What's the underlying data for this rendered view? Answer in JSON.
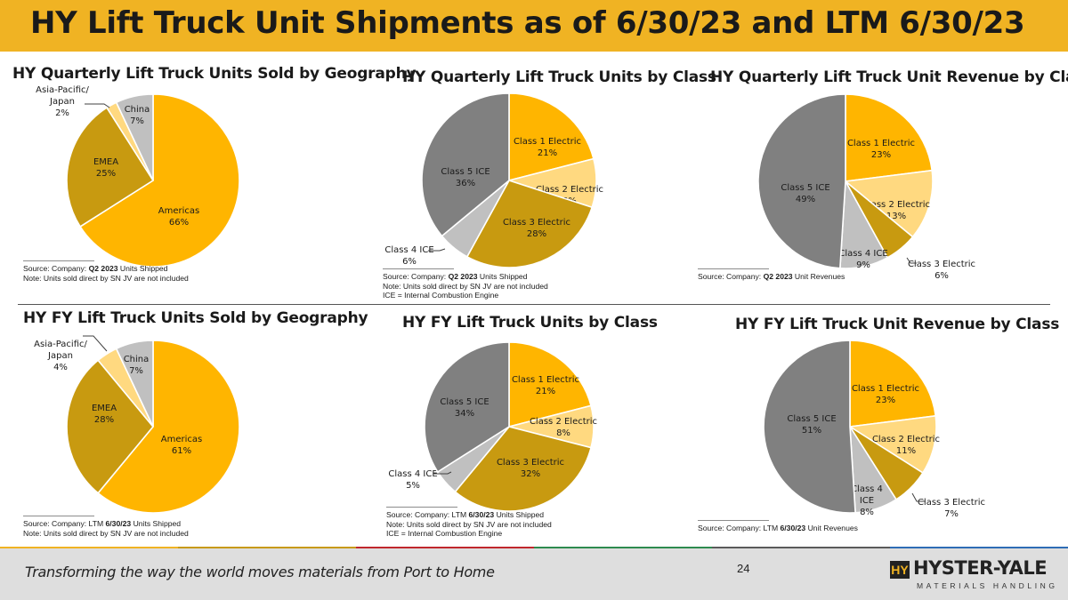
{
  "page": {
    "title": "HY Lift Truck Unit Shipments as of 6/30/23 and LTM 6/30/23",
    "tagline": "Transforming the way the world moves materials from Port to Home",
    "page_number": "24",
    "logo_mark": "HY",
    "logo_name": "HYSTER-YALE",
    "logo_sub": "MATERIALS HANDLING"
  },
  "colors": {
    "gold": "#ffb500",
    "dark_gold": "#c89a10",
    "light_gold": "#ffd980",
    "gray": "#808080",
    "light_gray": "#c0c0c0",
    "header_bar": "#f0b323"
  },
  "panels": [
    {
      "title": "HY Quarterly Lift Truck Units Sold by Geography",
      "note_lines": [
        {
          "pre": "Source: Company: ",
          "bold": "Q2 2023",
          "post": " Units Shipped"
        },
        {
          "pre": "Note:  Units sold direct by SN JV are not included",
          "bold": "",
          "post": ""
        }
      ]
    },
    {
      "title": "HY Quarterly Lift Truck Units by Class",
      "note_lines": [
        {
          "pre": "Source: Company: ",
          "bold": "Q2 2023",
          "post": " Units Shipped"
        },
        {
          "pre": "Note:  Units sold direct by SN JV are not included",
          "bold": "",
          "post": ""
        },
        {
          "pre": "ICE = Internal Combustion Engine",
          "bold": "",
          "post": ""
        }
      ]
    },
    {
      "title": "HY Quarterly Lift Truck Unit Revenue by Class",
      "note_lines": [
        {
          "pre": "Source: Company: ",
          "bold": "Q2 2023",
          "post": " Unit Revenues"
        }
      ]
    },
    {
      "title": "HY FY Lift Truck Units Sold by Geography",
      "note_lines": [
        {
          "pre": "Source: Company: LTM ",
          "bold": "6/30/23",
          "post": " Units Shipped"
        },
        {
          "pre": "Note:  Units sold direct by SN JV are not included",
          "bold": "",
          "post": ""
        }
      ]
    },
    {
      "title": "HY FY Lift Truck Units by Class",
      "note_lines": [
        {
          "pre": "Source: Company: LTM ",
          "bold": "6/30/23",
          "post": " Units Shipped"
        },
        {
          "pre": "Note:  Units sold direct by SN JV are not included",
          "bold": "",
          "post": ""
        },
        {
          "pre": "ICE = Internal Combustion Engine",
          "bold": "",
          "post": ""
        }
      ]
    },
    {
      "title": "HY FY Lift Truck Unit Revenue by Class",
      "note_lines": [
        {
          "pre": "Source: Company: LTM ",
          "bold": "6/30/23",
          "post": " Unit Revenues"
        }
      ]
    }
  ],
  "chart_data": [
    {
      "type": "pie",
      "title": "HY Quarterly Lift Truck Units Sold by Geography",
      "slices": [
        {
          "label": [
            "Americas"
          ],
          "value": 66,
          "display": "66%",
          "color": "#ffb500"
        },
        {
          "label": [
            "EMEA"
          ],
          "value": 25,
          "display": "25%",
          "color": "#c89a10"
        },
        {
          "label": [
            "Asia-Pacific/",
            "Japan"
          ],
          "value": 2,
          "display": "2%",
          "color": "#ffd980",
          "outside": true
        },
        {
          "label": [
            "China"
          ],
          "value": 7,
          "display": "7%",
          "color": "#c0c0c0"
        }
      ]
    },
    {
      "type": "pie",
      "title": "HY Quarterly Lift Truck Units by Class",
      "slices": [
        {
          "label": [
            "Class 1 Electric"
          ],
          "value": 21,
          "display": "21%",
          "color": "#ffb500"
        },
        {
          "label": [
            "Class 2 Electric"
          ],
          "value": 9,
          "display": "9%",
          "color": "#ffd980"
        },
        {
          "label": [
            "Class 3 Electric"
          ],
          "value": 28,
          "display": "28%",
          "color": "#c89a10"
        },
        {
          "label": [
            "Class 4 ICE"
          ],
          "value": 6,
          "display": "6%",
          "color": "#c0c0c0",
          "outside": true
        },
        {
          "label": [
            "Class 5 ICE"
          ],
          "value": 36,
          "display": "36%",
          "color": "#808080"
        }
      ]
    },
    {
      "type": "pie",
      "title": "HY Quarterly Lift Truck Unit Revenue by Class",
      "slices": [
        {
          "label": [
            "Class 1 Electric"
          ],
          "value": 23,
          "display": "23%",
          "color": "#ffb500"
        },
        {
          "label": [
            "Class 2 Electric"
          ],
          "value": 13,
          "display": "13%",
          "color": "#ffd980"
        },
        {
          "label": [
            "Class 3 Electric"
          ],
          "value": 6,
          "display": "6%",
          "color": "#c89a10",
          "outside": true
        },
        {
          "label": [
            "Class 4 ICE"
          ],
          "value": 9,
          "display": "9%",
          "color": "#c0c0c0"
        },
        {
          "label": [
            "Class 5 ICE"
          ],
          "value": 49,
          "display": "49%",
          "color": "#808080"
        }
      ]
    },
    {
      "type": "pie",
      "title": "HY FY Lift Truck Units Sold by Geography",
      "slices": [
        {
          "label": [
            "Americas"
          ],
          "value": 61,
          "display": "61%",
          "color": "#ffb500"
        },
        {
          "label": [
            "EMEA"
          ],
          "value": 28,
          "display": "28%",
          "color": "#c89a10"
        },
        {
          "label": [
            "Asia-Pacific/",
            "Japan"
          ],
          "value": 4,
          "display": "4%",
          "color": "#ffd980",
          "outside": true
        },
        {
          "label": [
            "China"
          ],
          "value": 7,
          "display": "7%",
          "color": "#c0c0c0"
        }
      ]
    },
    {
      "type": "pie",
      "title": "HY FY Lift Truck Units by Class",
      "slices": [
        {
          "label": [
            "Class 1 Electric"
          ],
          "value": 21,
          "display": "21%",
          "color": "#ffb500"
        },
        {
          "label": [
            "Class 2 Electric"
          ],
          "value": 8,
          "display": "8%",
          "color": "#ffd980"
        },
        {
          "label": [
            "Class 3 Electric"
          ],
          "value": 32,
          "display": "32%",
          "color": "#c89a10"
        },
        {
          "label": [
            "Class 4 ICE"
          ],
          "value": 5,
          "display": "5%",
          "color": "#c0c0c0",
          "outside": true
        },
        {
          "label": [
            "Class 5 ICE"
          ],
          "value": 34,
          "display": "34%",
          "color": "#808080"
        }
      ]
    },
    {
      "type": "pie",
      "title": "HY FY Lift Truck Unit Revenue by Class",
      "slices": [
        {
          "label": [
            "Class 1 Electric"
          ],
          "value": 23,
          "display": "23%",
          "color": "#ffb500"
        },
        {
          "label": [
            "Class 2 Electric"
          ],
          "value": 11,
          "display": "11%",
          "color": "#ffd980"
        },
        {
          "label": [
            "Class 3 Electric"
          ],
          "value": 7,
          "display": "7%",
          "color": "#c89a10",
          "outside": true
        },
        {
          "label": [
            "Class 4",
            "ICE"
          ],
          "value": 8,
          "display": "8%",
          "color": "#c0c0c0"
        },
        {
          "label": [
            "Class 5 ICE"
          ],
          "value": 51,
          "display": "51%",
          "color": "#808080"
        }
      ]
    }
  ]
}
